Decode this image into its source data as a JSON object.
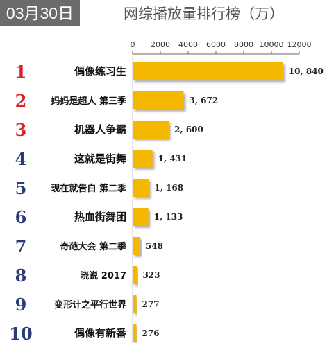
{
  "header": {
    "date_badge": "03月30日",
    "title": "网综播放量排行榜（万）"
  },
  "colors": {
    "bar": "#f5b800",
    "bar_shadow": "#bdbdbd",
    "rank_top3": "#d9222a",
    "rank_other": "#2b3a78",
    "badge_bg": "#6b6b6b"
  },
  "chart_data": {
    "type": "bar",
    "orientation": "horizontal",
    "title": "网综播放量排行榜（万）",
    "xlim": [
      0,
      12000
    ],
    "x_ticks": [
      "0",
      "2000",
      "4000",
      "6000",
      "8000",
      "10000",
      "12000"
    ],
    "grid": false,
    "ranks": [
      "1",
      "2",
      "3",
      "4",
      "5",
      "6",
      "7",
      "8",
      "9",
      "10"
    ],
    "categories": [
      "偶像练习生",
      "妈妈是超人 第三季",
      "机器人争霸",
      "这就是街舞",
      "现在就告白 第二季",
      "热血街舞团",
      "奇葩大会 第二季",
      "晓说 2017",
      "变形计之平行世界",
      "偶像有新番"
    ],
    "values": [
      10840,
      3672,
      2600,
      1431,
      1168,
      1133,
      548,
      323,
      277,
      276
    ],
    "value_labels": [
      "10, 840",
      "3, 672",
      "2, 600",
      "1, 431",
      "1, 168",
      "1, 133",
      "548",
      "323",
      "277",
      "276"
    ]
  }
}
